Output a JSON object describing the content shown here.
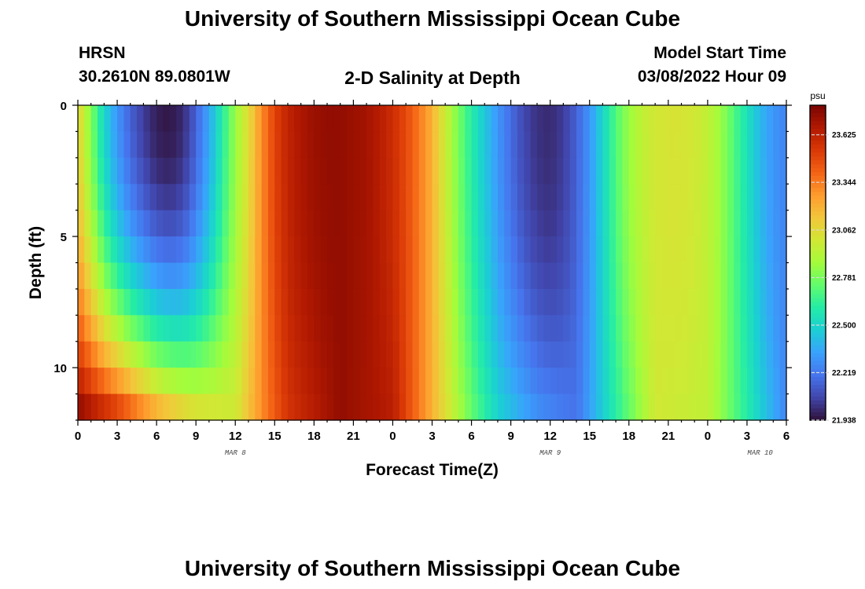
{
  "header": {
    "title": "University of Southern Mississippi Ocean Cube",
    "station": "HRSN",
    "coords": "30.2610N  89.0801W",
    "subtitle": "2-D Salinity at Depth",
    "start_label": "Model Start Time",
    "start_value": "03/08/2022 Hour 09"
  },
  "footer": {
    "title": "University of Southern Mississippi Ocean Cube"
  },
  "chart_data": {
    "type": "heatmap",
    "title": "2-D Salinity at Depth",
    "xlabel": "Forecast Time(Z)",
    "ylabel": "Depth (ft)",
    "x_ticks": [
      "0",
      "3",
      "6",
      "9",
      "12",
      "15",
      "18",
      "21",
      "0",
      "3",
      "6",
      "9",
      "12",
      "15",
      "18",
      "21",
      "0",
      "3",
      "6"
    ],
    "x_range_hours": [
      0,
      54
    ],
    "date_labels": [
      {
        "hour": 12,
        "label": "MAR 8"
      },
      {
        "hour": 36,
        "label": "MAR 9"
      },
      {
        "hour": 52,
        "label": "MAR 10"
      }
    ],
    "y_ticks": [
      0,
      5,
      10
    ],
    "y_range_ft": [
      0,
      12
    ],
    "y_inverted": true,
    "colorbar": {
      "unit": "psu",
      "min": 21.938,
      "max": 23.8,
      "tick_values": [
        23.625,
        23.344,
        23.062,
        22.781,
        22.5,
        22.219,
        21.938
      ],
      "tick_labels": [
        "23.625",
        "23.344",
        "23.062",
        "22.781",
        "22.500",
        "22.219",
        "21.938"
      ],
      "colormap": [
        "#30123b",
        "#4145ab",
        "#4675ed",
        "#39a2fc",
        "#1bcfd4",
        "#24eca6",
        "#61fc6c",
        "#a4fc3b",
        "#d1e834",
        "#f3c63a",
        "#fe9b2d",
        "#f36315",
        "#d93806",
        "#b11901",
        "#7a0402"
      ]
    },
    "surface_series": [
      {
        "hour": 0,
        "value": 23.1
      },
      {
        "hour": 1,
        "value": 22.8
      },
      {
        "hour": 2,
        "value": 22.5
      },
      {
        "hour": 3,
        "value": 22.3
      },
      {
        "hour": 4,
        "value": 22.15
      },
      {
        "hour": 5,
        "value": 22.05
      },
      {
        "hour": 6,
        "value": 21.97
      },
      {
        "hour": 7,
        "value": 21.95
      },
      {
        "hour": 8,
        "value": 22.0
      },
      {
        "hour": 9,
        "value": 22.15
      },
      {
        "hour": 10,
        "value": 22.35
      },
      {
        "hour": 11,
        "value": 22.6
      },
      {
        "hour": 12,
        "value": 22.85
      },
      {
        "hour": 13,
        "value": 23.05
      },
      {
        "hour": 14,
        "value": 23.3
      },
      {
        "hour": 15,
        "value": 23.5
      },
      {
        "hour": 16,
        "value": 23.62
      },
      {
        "hour": 17,
        "value": 23.68
      },
      {
        "hour": 18,
        "value": 23.72
      },
      {
        "hour": 19,
        "value": 23.74
      },
      {
        "hour": 20,
        "value": 23.74
      },
      {
        "hour": 21,
        "value": 23.72
      },
      {
        "hour": 22,
        "value": 23.7
      },
      {
        "hour": 23,
        "value": 23.65
      },
      {
        "hour": 24,
        "value": 23.58
      },
      {
        "hour": 25,
        "value": 23.48
      },
      {
        "hour": 26,
        "value": 23.35
      },
      {
        "hour": 27,
        "value": 23.2
      },
      {
        "hour": 28,
        "value": 22.98
      },
      {
        "hour": 29,
        "value": 22.78
      },
      {
        "hour": 30,
        "value": 22.6
      },
      {
        "hour": 31,
        "value": 22.45
      },
      {
        "hour": 32,
        "value": 22.3
      },
      {
        "hour": 33,
        "value": 22.18
      },
      {
        "hour": 34,
        "value": 22.08
      },
      {
        "hour": 35,
        "value": 22.02
      },
      {
        "hour": 36,
        "value": 22.0
      },
      {
        "hour": 37,
        "value": 22.05
      },
      {
        "hour": 38,
        "value": 22.15
      },
      {
        "hour": 39,
        "value": 22.3
      },
      {
        "hour": 40,
        "value": 22.5
      },
      {
        "hour": 41,
        "value": 22.7
      },
      {
        "hour": 42,
        "value": 22.85
      },
      {
        "hour": 43,
        "value": 22.95
      },
      {
        "hour": 44,
        "value": 23.0
      },
      {
        "hour": 45,
        "value": 23.02
      },
      {
        "hour": 46,
        "value": 23.02
      },
      {
        "hour": 47,
        "value": 23.0
      },
      {
        "hour": 48,
        "value": 22.95
      },
      {
        "hour": 49,
        "value": 22.85
      },
      {
        "hour": 50,
        "value": 22.7
      },
      {
        "hour": 51,
        "value": 22.55
      },
      {
        "hour": 52,
        "value": 22.4
      },
      {
        "hour": 53,
        "value": 22.3
      },
      {
        "hour": 54,
        "value": 22.25
      }
    ],
    "bottom_series": [
      {
        "hour": 0,
        "value": 23.8
      },
      {
        "hour": 3,
        "value": 23.6
      },
      {
        "hour": 6,
        "value": 23.3
      },
      {
        "hour": 9,
        "value": 23.1
      },
      {
        "hour": 12,
        "value": 23.0
      },
      {
        "hour": 14,
        "value": 23.3
      },
      {
        "hour": 16,
        "value": 23.55
      },
      {
        "hour": 20,
        "value": 23.74
      },
      {
        "hour": 24,
        "value": 23.65
      },
      {
        "hour": 28,
        "value": 23.05
      },
      {
        "hour": 30,
        "value": 22.75
      },
      {
        "hour": 32,
        "value": 22.5
      },
      {
        "hour": 35,
        "value": 22.3
      },
      {
        "hour": 38,
        "value": 22.2
      },
      {
        "hour": 41,
        "value": 22.6
      },
      {
        "hour": 44,
        "value": 23.0
      },
      {
        "hour": 48,
        "value": 22.95
      },
      {
        "hour": 54,
        "value": 22.25
      }
    ]
  }
}
